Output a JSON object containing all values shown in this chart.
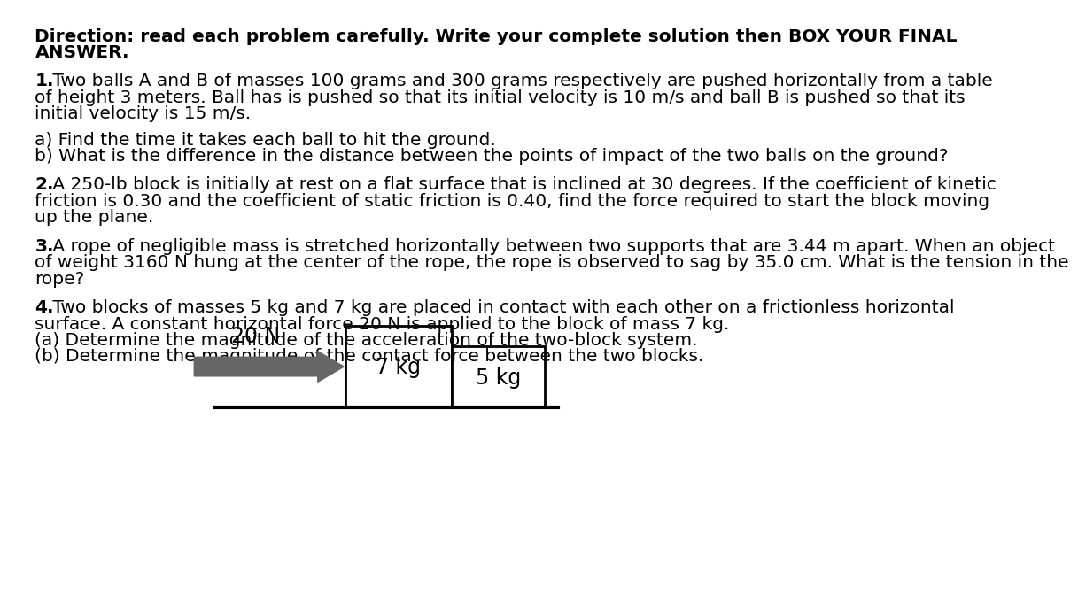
{
  "background_color": "#ffffff",
  "text_color": "#000000",
  "title_line1": "Direction: read each problem carefully. Write your complete solution then BOX YOUR FINAL",
  "title_line2": "ANSWER.",
  "p1_num": "1.",
  "p1_line1": " Two balls A and B of masses 100 grams and 300 grams respectively are pushed horizontally from a table",
  "p1_line2": "of height 3 meters. Ball has is pushed so that its initial velocity is 10 m/s and ball B is pushed so that its",
  "p1_line3": "initial velocity is 15 m/s.",
  "p1_sub1": "a) Find the time it takes each ball to hit the ground.",
  "p1_sub2": "b) What is the difference in the distance between the points of impact of the two balls on the ground?",
  "p2_num": "2.",
  "p2_line1": " A 250-lb block is initially at rest on a flat surface that is inclined at 30 degrees. If the coefficient of kinetic",
  "p2_line2": "friction is 0.30 and the coefficient of static friction is 0.40, find the force required to start the block moving",
  "p2_line3": "up the plane.",
  "p3_num": "3.",
  "p3_line1": " A rope of negligible mass is stretched horizontally between two supports that are 3.44 m apart. When an object",
  "p3_line2": "of weight 3160 N hung at the center of the rope, the rope is observed to sag by 35.0 cm. What is the tension in the",
  "p3_line3": "rope?",
  "p4_num": "4.",
  "p4_line1": " Two blocks of masses 5 kg and 7 kg are placed in contact with each other on a frictionless horizontal",
  "p4_line2": "surface. A constant horizontal force 20 N is applied to the block of mass 7 kg.",
  "p4_sub1": "(a) Determine the magnitude of the acceleration of the two-block system.",
  "p4_sub2": "(b) Determine the magnitude of the contact force between the two blocks.",
  "diag_force_label": "20 N",
  "diag_block1_label": "7 kg",
  "diag_block2_label": "5 kg",
  "arrow_color": "#666666",
  "block_fill": "#ffffff",
  "block_edge": "#000000",
  "font_size": 14.5,
  "font_size_title": 14.5
}
